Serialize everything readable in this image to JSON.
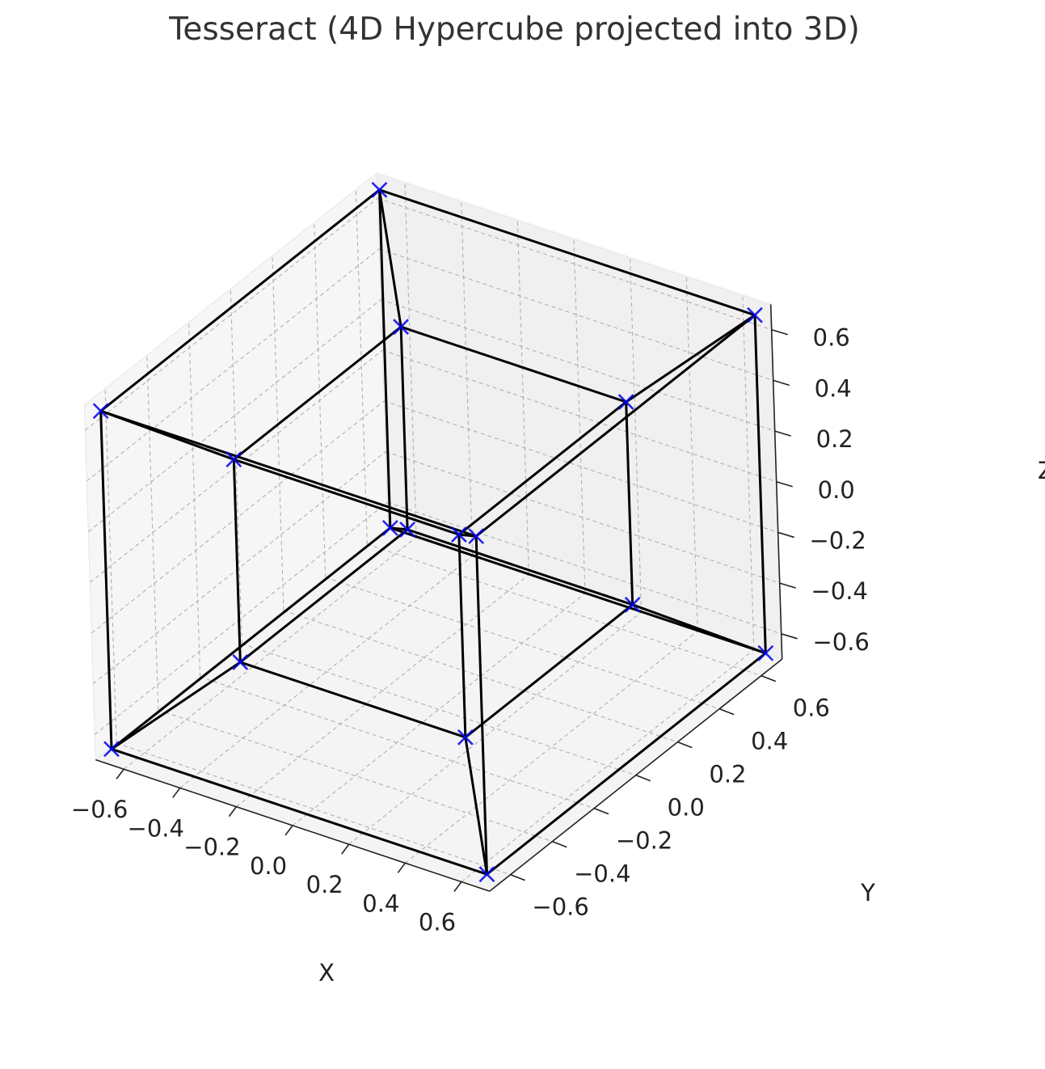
{
  "chart_data": {
    "type": "scatter",
    "title": "Tesseract (4D Hypercube projected into 3D)",
    "xlabel": "X",
    "ylabel": "Y",
    "zlabel": "Z",
    "xticks": [
      "−0.6",
      "−0.4",
      "−0.2",
      "0.0",
      "0.2",
      "0.4",
      "0.6"
    ],
    "yticks": [
      "−0.6",
      "−0.4",
      "−0.2",
      "0.0",
      "0.2",
      "0.4",
      "0.6"
    ],
    "zticks": [
      "−0.6",
      "−0.4",
      "−0.2",
      "0.0",
      "0.2",
      "0.4",
      "0.6"
    ],
    "xlim": [
      -0.7,
      0.7
    ],
    "ylim": [
      -0.7,
      0.7
    ],
    "zlim": [
      -0.7,
      0.7
    ],
    "grid": true,
    "marker": "x",
    "colors": {
      "edges": "#000000",
      "vertices": "#0000ee",
      "pane": "#f2f2f2",
      "grid": "#b0b0b0"
    },
    "vertices": [
      {
        "x": -0.667,
        "y": -0.667,
        "z": -0.667
      },
      {
        "x": 0.667,
        "y": -0.667,
        "z": -0.667
      },
      {
        "x": 0.667,
        "y": 0.667,
        "z": -0.667
      },
      {
        "x": -0.667,
        "y": 0.667,
        "z": -0.667
      },
      {
        "x": -0.667,
        "y": -0.667,
        "z": 0.667
      },
      {
        "x": 0.667,
        "y": -0.667,
        "z": 0.667
      },
      {
        "x": 0.667,
        "y": 0.667,
        "z": 0.667
      },
      {
        "x": -0.667,
        "y": 0.667,
        "z": 0.667
      },
      {
        "x": -0.4,
        "y": -0.4,
        "z": -0.4
      },
      {
        "x": 0.4,
        "y": -0.4,
        "z": -0.4
      },
      {
        "x": 0.4,
        "y": 0.4,
        "z": -0.4
      },
      {
        "x": -0.4,
        "y": 0.4,
        "z": -0.4
      },
      {
        "x": -0.4,
        "y": -0.4,
        "z": 0.4
      },
      {
        "x": 0.4,
        "y": -0.4,
        "z": 0.4
      },
      {
        "x": 0.4,
        "y": 0.4,
        "z": 0.4
      },
      {
        "x": -0.4,
        "y": 0.4,
        "z": 0.4
      }
    ],
    "edges": [
      [
        0,
        1
      ],
      [
        1,
        2
      ],
      [
        2,
        3
      ],
      [
        3,
        0
      ],
      [
        4,
        5
      ],
      [
        5,
        6
      ],
      [
        6,
        7
      ],
      [
        7,
        4
      ],
      [
        0,
        4
      ],
      [
        1,
        5
      ],
      [
        2,
        6
      ],
      [
        3,
        7
      ],
      [
        8,
        9
      ],
      [
        9,
        10
      ],
      [
        10,
        11
      ],
      [
        11,
        8
      ],
      [
        12,
        13
      ],
      [
        13,
        14
      ],
      [
        14,
        15
      ],
      [
        15,
        12
      ],
      [
        8,
        12
      ],
      [
        9,
        13
      ],
      [
        10,
        14
      ],
      [
        11,
        15
      ],
      [
        0,
        8
      ],
      [
        1,
        9
      ],
      [
        2,
        10
      ],
      [
        3,
        11
      ],
      [
        4,
        12
      ],
      [
        5,
        13
      ],
      [
        6,
        14
      ],
      [
        7,
        15
      ]
    ]
  }
}
